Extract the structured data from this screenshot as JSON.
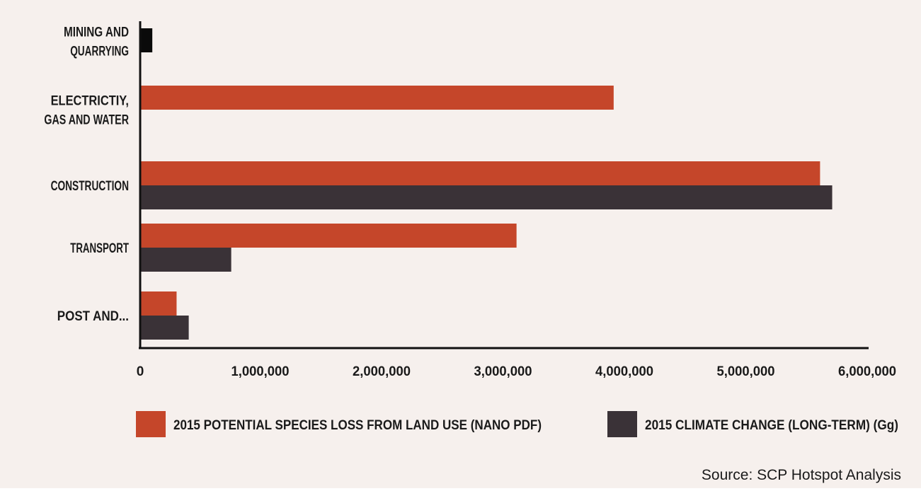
{
  "chart_data": {
    "type": "bar",
    "orientation": "horizontal",
    "categories": [
      [
        "MINING AND",
        "QUARRYING"
      ],
      [
        "ELECTRICTIY,",
        "GAS AND WATER"
      ],
      [
        "CONSTRUCTION"
      ],
      [
        "TRANSPORT"
      ],
      [
        "POST AND..."
      ]
    ],
    "series": [
      {
        "name": "2015 POTENTIAL SPECIES LOSS FROM LAND USE (NANO PDF)",
        "color": "#c5462a",
        "values": [
          0,
          3900000,
          5600000,
          3100000,
          300000
        ]
      },
      {
        "name": "2015 CLIMATE CHANGE (LONG-TERM) (Gg)",
        "color": "#3a3237",
        "values": [
          100000,
          0,
          5700000,
          750000,
          400000
        ]
      }
    ],
    "xlim": [
      0,
      6000000
    ],
    "xticks": [
      {
        "value": 0,
        "label": "0"
      },
      {
        "value": 1000000,
        "label": "1,000,000"
      },
      {
        "value": 2000000,
        "label": "2,000,000"
      },
      {
        "value": 3000000,
        "label": "3,000,000"
      },
      {
        "value": 4000000,
        "label": "4,000,000"
      },
      {
        "value": 5000000,
        "label": "5,000,000"
      },
      {
        "value": 6000000,
        "label": "6,000,000"
      }
    ],
    "grid": false,
    "legend_position": "bottom",
    "source": "Source: SCP Hotspot Analysis"
  }
}
